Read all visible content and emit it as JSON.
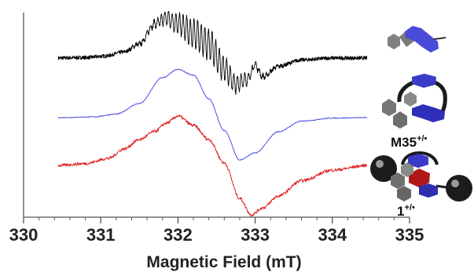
{
  "chart_data": {
    "type": "line",
    "title": "",
    "xlabel": "Magnetic Field (mT)",
    "ylabel": "",
    "xlim": [
      330,
      335
    ],
    "xticks": [
      330,
      331,
      332,
      333,
      334,
      335
    ],
    "xtick_labels": [
      "330",
      "331",
      "332",
      "333",
      "334",
      "335"
    ],
    "x_range": [
      330.45,
      334.45
    ],
    "grid": false,
    "series": [
      {
        "key": "top",
        "color": "#000000",
        "hyperfine": true,
        "points": [
          [
            330.45,
            0.0
          ],
          [
            330.8,
            0.2
          ],
          [
            331.05,
            0.8
          ],
          [
            331.3,
            2.6
          ],
          [
            331.5,
            6.0
          ],
          [
            331.7,
            14.5
          ],
          [
            331.85,
            17.0
          ],
          [
            332.0,
            14.5
          ],
          [
            332.2,
            10.5
          ],
          [
            332.4,
            6.0
          ],
          [
            332.6,
            -4.5
          ],
          [
            332.75,
            -11.0
          ],
          [
            332.9,
            -9.0
          ],
          [
            333.0,
            -3.0
          ],
          [
            333.1,
            -8.0
          ],
          [
            333.3,
            -3.5
          ],
          [
            333.6,
            -0.8
          ],
          [
            334.0,
            0.0
          ],
          [
            334.45,
            0.0
          ]
        ]
      },
      {
        "key": "m35",
        "label": "M35",
        "label_sup": "+/•",
        "color": "#5050e6",
        "hyperfine": false,
        "points": [
          [
            330.45,
            0.0
          ],
          [
            330.9,
            0.3
          ],
          [
            331.2,
            1.5
          ],
          [
            331.5,
            6.0
          ],
          [
            331.8,
            17.0
          ],
          [
            332.0,
            20.5
          ],
          [
            332.2,
            18.0
          ],
          [
            332.4,
            8.0
          ],
          [
            332.6,
            -5.5
          ],
          [
            332.8,
            -18.0
          ],
          [
            333.0,
            -15.0
          ],
          [
            333.3,
            -6.0
          ],
          [
            333.6,
            -1.5
          ],
          [
            334.0,
            -0.2
          ],
          [
            334.45,
            0.0
          ]
        ]
      },
      {
        "key": "one",
        "label": "1",
        "label_sup": "+/•",
        "color": "#e02020",
        "hyperfine": false,
        "points": [
          [
            330.45,
            0.0
          ],
          [
            330.8,
            0.8
          ],
          [
            331.1,
            3.0
          ],
          [
            331.3,
            7.0
          ],
          [
            331.5,
            11.0
          ],
          [
            331.7,
            14.5
          ],
          [
            331.85,
            18.0
          ],
          [
            332.0,
            21.0
          ],
          [
            332.2,
            17.0
          ],
          [
            332.4,
            11.0
          ],
          [
            332.6,
            1.0
          ],
          [
            332.8,
            -14.0
          ],
          [
            332.95,
            -21.0
          ],
          [
            333.1,
            -18.0
          ],
          [
            333.3,
            -13.0
          ],
          [
            333.6,
            -6.5
          ],
          [
            334.0,
            -2.0
          ],
          [
            334.45,
            0.0
          ]
        ]
      }
    ]
  }
}
